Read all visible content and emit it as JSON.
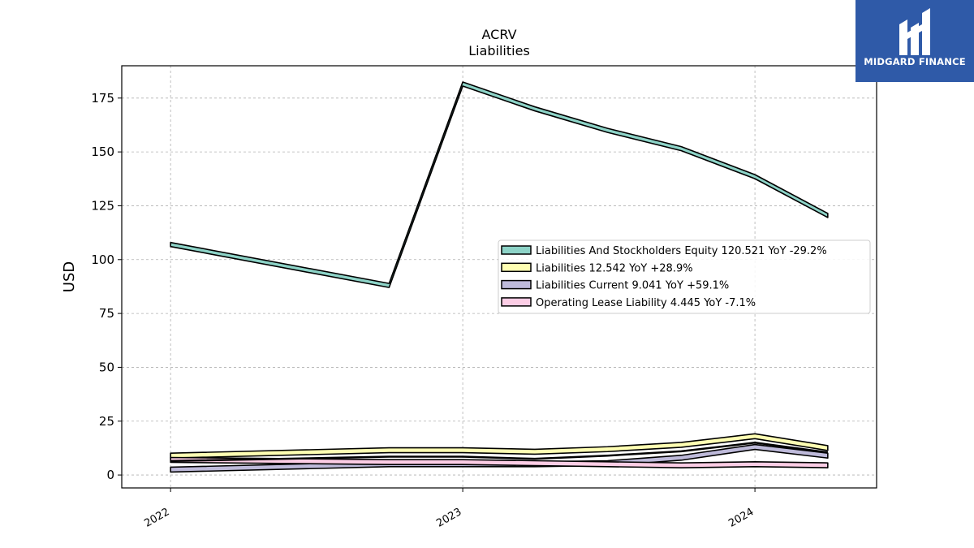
{
  "chart_data": {
    "type": "area",
    "title": "ACRV",
    "subtitle": "Liabilities",
    "ylabel": "USD",
    "xlabel": "",
    "ylim": [
      -6,
      190
    ],
    "yticks": [
      0,
      25,
      50,
      75,
      100,
      125,
      150,
      175
    ],
    "xticks": [
      "2022",
      "2023",
      "2024"
    ],
    "x": [
      "2022-01-01",
      "2022-10-01",
      "2023-01-01",
      "2023-04-01",
      "2023-07-01",
      "2023-10-01",
      "2024-01-01",
      "2024-04-01"
    ],
    "grid": true,
    "legend_position": "center-right",
    "series": [
      {
        "name": "Liabilities And Stockholders Equity",
        "legend": "Liabilities And Stockholders Equity  120.521 YoY -29.2%",
        "color": "#8dd3c7",
        "values": [
          107,
          88,
          181.5,
          170,
          160,
          151.5,
          138.5,
          120.5
        ]
      },
      {
        "name": "Liabilities",
        "legend": "Liabilities  12.542 YoY +28.9%",
        "color": "#ffffb3",
        "values": [
          9,
          11.5,
          11.5,
          10.8,
          12,
          14,
          18,
          12.5
        ]
      },
      {
        "name": "Liabilities Current",
        "legend": "Liabilities Current  9.041 YoY +59.1%",
        "color": "#bebada",
        "values": [
          2.5,
          5,
          5,
          5,
          5.5,
          8,
          13,
          9
        ]
      },
      {
        "name": "Operating Lease Liability",
        "legend": "Operating Lease Liability  4.445 YoY -7.1%",
        "color": "#fccde5",
        "values": [
          7,
          6,
          6,
          5.5,
          5,
          4.5,
          5,
          4.5
        ]
      }
    ],
    "overlay_line": {
      "values": [
        6.5,
        8.5,
        8.5,
        7.5,
        9,
        11,
        15,
        10.5
      ],
      "color": "#000000"
    }
  },
  "logo": {
    "text": "MIDGARD FINANCE",
    "color": "#2f5aa8"
  }
}
